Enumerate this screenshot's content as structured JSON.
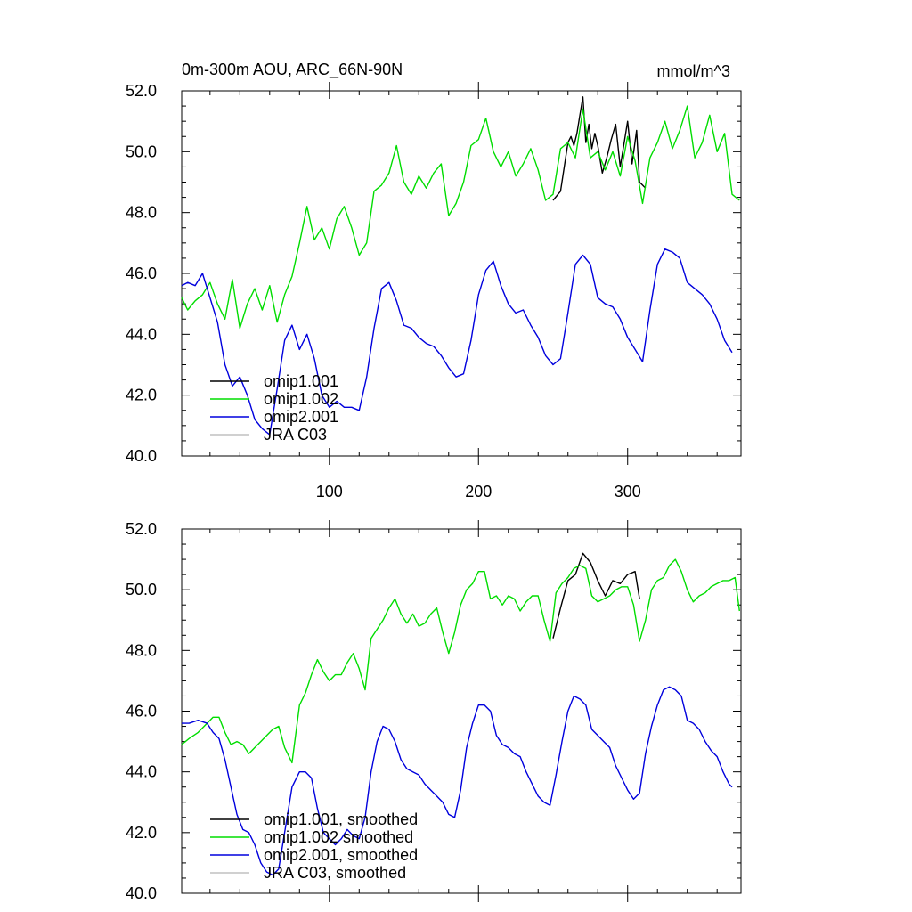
{
  "header": {
    "title": "0m-300m AOU, ARC_66N-90N",
    "units": "mmol/m^3"
  },
  "colors": {
    "omip1_001": "#000000",
    "omip1_002": "#00dd00",
    "omip2_001": "#0000dd",
    "jra_c03": "#c0c0c0"
  },
  "chart_data": [
    {
      "type": "line",
      "title": "0m-300m AOU, ARC_66N-90N",
      "units": "mmol/m^3",
      "xlim": [
        1,
        376
      ],
      "ylim": [
        40,
        52
      ],
      "xticks": [
        100,
        200,
        300
      ],
      "xtick_labels": [
        "100",
        "200",
        "300"
      ],
      "yticks": [
        40,
        42,
        44,
        46,
        48,
        50,
        52
      ],
      "ytick_labels": [
        "40.0",
        "42.0",
        "44.0",
        "46.0",
        "48.0",
        "50.0",
        "52.0"
      ],
      "legend": [
        "omip1.001",
        "omip1.002",
        "omip2.001",
        "JRA C03"
      ],
      "legend_placement": "bottom-left",
      "series": [
        {
          "name": "omip1.001",
          "x": [
            250,
            255,
            260,
            262,
            264,
            266,
            268,
            270,
            272,
            274,
            276,
            278,
            280,
            283,
            286,
            289,
            292,
            295,
            298,
            300,
            303,
            306,
            308,
            310,
            312
          ],
          "y": [
            48.4,
            48.7,
            50.3,
            50.5,
            50.2,
            50.6,
            51.2,
            51.8,
            50.3,
            50.9,
            50.1,
            50.6,
            50.2,
            49.3,
            49.8,
            50.4,
            50.9,
            49.5,
            50.4,
            51.0,
            49.6,
            50.7,
            49.0,
            48.9,
            48.8
          ],
          "color": "#000000"
        },
        {
          "name": "omip1.002",
          "x": [
            1,
            5,
            10,
            15,
            20,
            25,
            30,
            35,
            40,
            45,
            50,
            55,
            60,
            65,
            70,
            75,
            80,
            85,
            90,
            95,
            100,
            105,
            110,
            115,
            120,
            125,
            130,
            135,
            140,
            145,
            150,
            155,
            160,
            165,
            170,
            175,
            180,
            185,
            190,
            195,
            200,
            205,
            210,
            215,
            220,
            225,
            230,
            235,
            240,
            245,
            250,
            255,
            260,
            265,
            270,
            275,
            280,
            285,
            290,
            295,
            300,
            305,
            310,
            315,
            320,
            325,
            330,
            335,
            340,
            345,
            350,
            355,
            360,
            365,
            370,
            375
          ],
          "y": [
            45.2,
            44.8,
            45.1,
            45.3,
            45.7,
            45.0,
            44.5,
            45.8,
            44.2,
            45.0,
            45.5,
            44.8,
            45.6,
            44.4,
            45.3,
            45.9,
            47.0,
            48.2,
            47.1,
            47.5,
            46.8,
            47.8,
            48.2,
            47.5,
            46.6,
            47.0,
            48.7,
            48.9,
            49.3,
            50.2,
            49.0,
            48.6,
            49.2,
            48.8,
            49.3,
            49.6,
            47.9,
            48.3,
            49.0,
            50.2,
            50.4,
            51.1,
            50.0,
            49.5,
            50.0,
            49.2,
            49.6,
            50.1,
            49.4,
            48.4,
            48.6,
            50.1,
            50.3,
            49.8,
            51.4,
            49.8,
            50.0,
            49.4,
            50.0,
            49.2,
            50.5,
            49.7,
            48.3,
            49.8,
            50.3,
            51.0,
            50.1,
            50.7,
            51.5,
            49.8,
            50.3,
            51.2,
            50.0,
            50.6,
            48.6,
            48.4
          ],
          "color": "#00dd00"
        },
        {
          "name": "omip2.001",
          "x": [
            1,
            5,
            10,
            15,
            20,
            25,
            30,
            35,
            40,
            45,
            50,
            55,
            60,
            65,
            70,
            75,
            80,
            85,
            90,
            95,
            100,
            105,
            110,
            115,
            120,
            125,
            130,
            135,
            140,
            145,
            150,
            155,
            160,
            165,
            170,
            175,
            180,
            185,
            190,
            195,
            200,
            205,
            210,
            215,
            220,
            225,
            230,
            235,
            240,
            245,
            250,
            255,
            260,
            265,
            270,
            275,
            280,
            285,
            290,
            295,
            300,
            305,
            310,
            315,
            320,
            325,
            330,
            335,
            340,
            345,
            350,
            355,
            360,
            365,
            370
          ],
          "y": [
            45.6,
            45.7,
            45.6,
            46.0,
            45.2,
            44.4,
            43.0,
            42.3,
            42.6,
            42.0,
            41.2,
            40.9,
            40.7,
            42.2,
            43.8,
            44.3,
            43.5,
            44.0,
            43.2,
            42.0,
            41.6,
            41.8,
            41.6,
            41.6,
            41.5,
            42.6,
            44.2,
            45.5,
            45.7,
            45.1,
            44.3,
            44.2,
            43.9,
            43.7,
            43.6,
            43.3,
            42.9,
            42.6,
            42.7,
            43.8,
            45.3,
            46.1,
            46.4,
            45.6,
            45.0,
            44.7,
            44.8,
            44.3,
            43.9,
            43.3,
            43.0,
            43.2,
            44.7,
            46.3,
            46.6,
            46.3,
            45.2,
            45.0,
            44.9,
            44.5,
            43.9,
            43.5,
            43.1,
            44.8,
            46.3,
            46.8,
            46.7,
            46.5,
            45.7,
            45.5,
            45.3,
            45.0,
            44.5,
            43.8,
            43.4
          ],
          "color": "#0000dd"
        },
        {
          "name": "JRA C03",
          "x": [],
          "y": [],
          "color": "#c0c0c0"
        }
      ]
    },
    {
      "type": "line",
      "title": "",
      "xlim": [
        1,
        376
      ],
      "ylim": [
        40,
        52
      ],
      "xticks": [
        100,
        200,
        300
      ],
      "xtick_labels": [
        "",
        "",
        ""
      ],
      "yticks": [
        40,
        42,
        44,
        46,
        48,
        50,
        52
      ],
      "ytick_labels": [
        "40.0",
        "42.0",
        "44.0",
        "46.0",
        "48.0",
        "50.0",
        "52.0"
      ],
      "legend": [
        "omip1.001, smoothed",
        "omip1.002 smoothed",
        "omip2.001, smoothed",
        "JRA C03, smoothed"
      ],
      "legend_placement": "bottom-left",
      "series": [
        {
          "name": "omip1.001, smoothed",
          "x": [
            250,
            255,
            260,
            265,
            270,
            275,
            280,
            285,
            290,
            295,
            300,
            305,
            308
          ],
          "y": [
            48.4,
            49.4,
            50.3,
            50.5,
            51.2,
            50.9,
            50.3,
            49.8,
            50.3,
            50.2,
            50.5,
            50.6,
            49.7
          ],
          "color": "#000000"
        },
        {
          "name": "omip1.002 smoothed",
          "x": [
            1,
            6,
            12,
            18,
            22,
            26,
            30,
            34,
            38,
            42,
            46,
            50,
            54,
            58,
            62,
            66,
            70,
            75,
            80,
            84,
            88,
            92,
            96,
            100,
            104,
            108,
            112,
            116,
            120,
            124,
            128,
            132,
            136,
            140,
            144,
            148,
            152,
            156,
            160,
            164,
            168,
            172,
            176,
            180,
            184,
            188,
            192,
            196,
            200,
            204,
            208,
            212,
            216,
            220,
            224,
            228,
            232,
            236,
            240,
            244,
            248,
            252,
            256,
            260,
            264,
            268,
            272,
            276,
            280,
            284,
            288,
            292,
            296,
            300,
            304,
            308,
            312,
            316,
            320,
            324,
            328,
            332,
            336,
            340,
            344,
            348,
            352,
            356,
            360,
            364,
            368,
            372,
            375
          ],
          "y": [
            44.9,
            45.1,
            45.3,
            45.6,
            45.8,
            45.8,
            45.3,
            44.9,
            45.0,
            44.9,
            44.6,
            44.8,
            45.0,
            45.2,
            45.4,
            45.5,
            44.8,
            44.3,
            46.2,
            46.6,
            47.2,
            47.7,
            47.3,
            47.0,
            47.2,
            47.2,
            47.6,
            47.9,
            47.4,
            46.7,
            48.4,
            48.7,
            49.0,
            49.4,
            49.7,
            49.2,
            48.9,
            49.2,
            48.8,
            48.9,
            49.2,
            49.4,
            48.6,
            47.9,
            48.6,
            49.5,
            50.0,
            50.2,
            50.6,
            50.6,
            49.7,
            49.8,
            49.5,
            49.8,
            49.7,
            49.3,
            49.6,
            49.8,
            49.8,
            49.0,
            48.3,
            49.9,
            50.2,
            50.4,
            50.7,
            50.8,
            50.7,
            49.8,
            49.6,
            49.7,
            49.8,
            50.0,
            50.1,
            50.1,
            49.5,
            48.3,
            49.0,
            50.0,
            50.3,
            50.4,
            50.8,
            51.0,
            50.6,
            50.0,
            49.6,
            49.8,
            49.9,
            50.1,
            50.2,
            50.3,
            50.3,
            50.4,
            49.3
          ],
          "color": "#00dd00"
        },
        {
          "name": "omip2.001, smoothed",
          "x": [
            1,
            6,
            12,
            18,
            22,
            26,
            30,
            34,
            38,
            42,
            46,
            50,
            54,
            58,
            62,
            66,
            70,
            75,
            80,
            84,
            88,
            92,
            96,
            100,
            104,
            108,
            112,
            116,
            120,
            124,
            128,
            132,
            136,
            140,
            144,
            148,
            152,
            156,
            160,
            164,
            168,
            172,
            176,
            180,
            184,
            188,
            192,
            196,
            200,
            204,
            208,
            212,
            216,
            220,
            224,
            228,
            232,
            236,
            240,
            244,
            248,
            252,
            256,
            260,
            264,
            268,
            272,
            276,
            280,
            284,
            288,
            292,
            296,
            300,
            304,
            308,
            312,
            316,
            320,
            324,
            328,
            332,
            336,
            340,
            344,
            348,
            352,
            356,
            360,
            364,
            368,
            370
          ],
          "y": [
            45.6,
            45.6,
            45.7,
            45.6,
            45.3,
            45.1,
            44.4,
            43.5,
            42.6,
            42.1,
            42.0,
            41.6,
            41.0,
            40.7,
            40.6,
            40.8,
            42.0,
            43.5,
            44.0,
            44.0,
            43.8,
            42.8,
            42.0,
            41.8,
            41.6,
            41.8,
            42.1,
            41.9,
            41.8,
            42.5,
            44.0,
            45.0,
            45.5,
            45.4,
            45.0,
            44.4,
            44.1,
            44.0,
            43.9,
            43.6,
            43.4,
            43.2,
            43.0,
            42.6,
            42.5,
            43.4,
            44.8,
            45.6,
            46.2,
            46.2,
            46.0,
            45.2,
            44.9,
            44.8,
            44.6,
            44.5,
            44.0,
            43.6,
            43.2,
            43.0,
            42.9,
            43.9,
            45.0,
            46.0,
            46.5,
            46.4,
            46.2,
            45.4,
            45.2,
            45.0,
            44.8,
            44.2,
            43.8,
            43.4,
            43.1,
            43.3,
            44.6,
            45.5,
            46.2,
            46.7,
            46.8,
            46.7,
            46.5,
            45.7,
            45.6,
            45.4,
            45.0,
            44.7,
            44.5,
            44.0,
            43.6,
            43.5
          ],
          "color": "#0000dd"
        },
        {
          "name": "JRA C03, smoothed",
          "x": [],
          "y": [],
          "color": "#c0c0c0"
        }
      ]
    }
  ]
}
